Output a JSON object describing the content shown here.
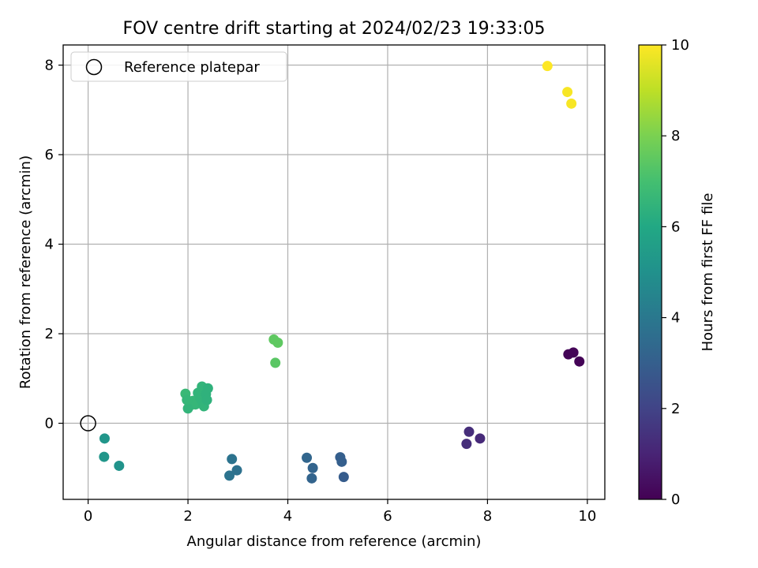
{
  "chart_data": {
    "type": "scatter",
    "title": "FOV centre drift starting at 2024/02/23 19:33:05",
    "xlabel": "Angular distance from reference (arcmin)",
    "ylabel": "Rotation from reference (arcmin)",
    "xlim": [
      -0.5,
      10.35
    ],
    "ylim": [
      -1.7,
      8.45
    ],
    "xticks": [
      0,
      2,
      4,
      6,
      8,
      10
    ],
    "yticks": [
      0,
      2,
      4,
      6,
      8
    ],
    "grid": true,
    "legend": {
      "placement": "top-left",
      "entries": [
        "Reference platepar"
      ]
    },
    "reference": {
      "x": 0,
      "y": 0,
      "label": "Reference platepar"
    },
    "colorbar": {
      "label": "Hours from first FF file",
      "range": [
        0,
        10
      ],
      "ticks": [
        0,
        2,
        4,
        6,
        8,
        10
      ],
      "colormap": "viridis"
    },
    "points": [
      {
        "x": 9.2,
        "y": 7.98,
        "c": 10.0
      },
      {
        "x": 9.6,
        "y": 7.4,
        "c": 9.9
      },
      {
        "x": 9.68,
        "y": 7.14,
        "c": 9.9
      },
      {
        "x": 3.72,
        "y": 1.87,
        "c": 7.5
      },
      {
        "x": 3.8,
        "y": 1.8,
        "c": 7.5
      },
      {
        "x": 3.75,
        "y": 1.35,
        "c": 7.4
      },
      {
        "x": 1.95,
        "y": 0.66,
        "c": 6.7
      },
      {
        "x": 2.05,
        "y": 0.4,
        "c": 6.6
      },
      {
        "x": 2.1,
        "y": 0.5,
        "c": 6.6
      },
      {
        "x": 2.15,
        "y": 0.42,
        "c": 6.6
      },
      {
        "x": 2.2,
        "y": 0.68,
        "c": 6.5
      },
      {
        "x": 2.25,
        "y": 0.55,
        "c": 6.5
      },
      {
        "x": 2.28,
        "y": 0.82,
        "c": 6.5
      },
      {
        "x": 2.3,
        "y": 0.45,
        "c": 6.5
      },
      {
        "x": 2.32,
        "y": 0.38,
        "c": 6.5
      },
      {
        "x": 2.36,
        "y": 0.65,
        "c": 6.4
      },
      {
        "x": 2.4,
        "y": 0.78,
        "c": 6.4
      },
      {
        "x": 2.38,
        "y": 0.52,
        "c": 6.4
      },
      {
        "x": 2.0,
        "y": 0.33,
        "c": 6.5
      },
      {
        "x": 1.98,
        "y": 0.52,
        "c": 6.6
      },
      {
        "x": 0.33,
        "y": -0.34,
        "c": 5.2
      },
      {
        "x": 0.32,
        "y": -0.75,
        "c": 5.2
      },
      {
        "x": 0.62,
        "y": -0.95,
        "c": 5.1
      },
      {
        "x": 2.88,
        "y": -0.8,
        "c": 3.8
      },
      {
        "x": 2.83,
        "y": -1.17,
        "c": 3.8
      },
      {
        "x": 2.98,
        "y": -1.05,
        "c": 3.7
      },
      {
        "x": 4.38,
        "y": -0.77,
        "c": 3.3
      },
      {
        "x": 4.5,
        "y": -1.0,
        "c": 3.2
      },
      {
        "x": 4.48,
        "y": -1.23,
        "c": 3.2
      },
      {
        "x": 5.05,
        "y": -0.76,
        "c": 3.0
      },
      {
        "x": 5.08,
        "y": -0.86,
        "c": 3.0
      },
      {
        "x": 5.12,
        "y": -1.2,
        "c": 2.9
      },
      {
        "x": 7.63,
        "y": -0.19,
        "c": 1.3
      },
      {
        "x": 7.58,
        "y": -0.46,
        "c": 1.3
      },
      {
        "x": 7.85,
        "y": -0.34,
        "c": 1.2
      },
      {
        "x": 9.62,
        "y": 1.54,
        "c": 0.1
      },
      {
        "x": 9.72,
        "y": 1.58,
        "c": 0.1
      },
      {
        "x": 9.84,
        "y": 1.38,
        "c": 0.05
      }
    ]
  }
}
